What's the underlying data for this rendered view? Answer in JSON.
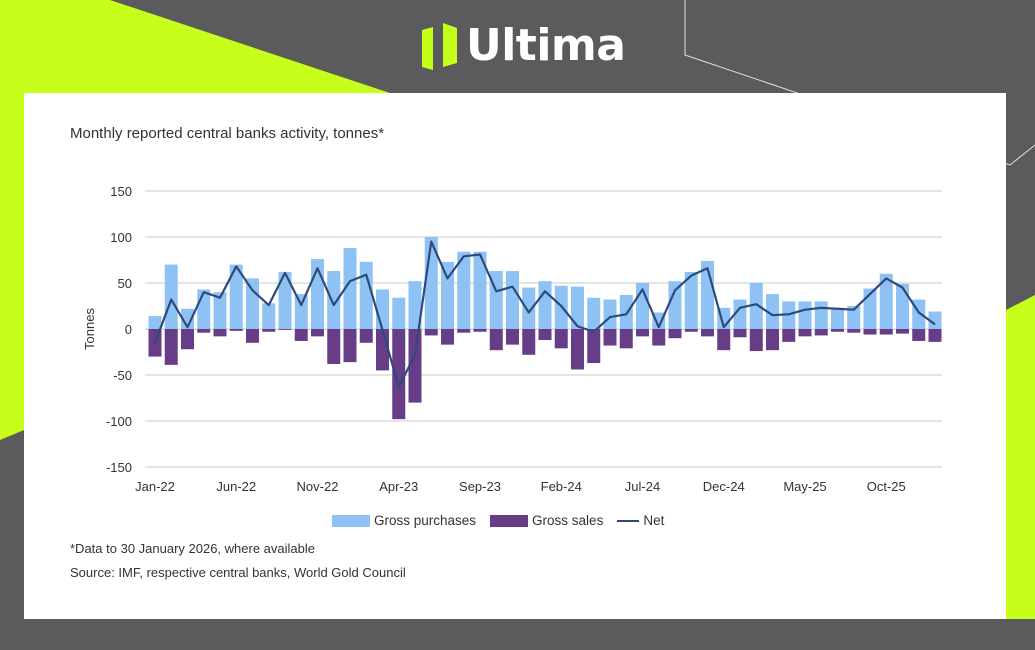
{
  "brand": {
    "name": "Ultima",
    "accent": "#c6ff1a"
  },
  "chart_data": {
    "type": "bar",
    "title": "Monthly reported central banks activity, tonnes*",
    "ylabel": "Tonnes",
    "xlabel": "",
    "ylim": [
      -150,
      150
    ],
    "yticks": [
      150,
      100,
      50,
      0,
      -50,
      -100,
      -150
    ],
    "xtick_labels": [
      "Jan-22",
      "Jun-22",
      "Nov-22",
      "Apr-23",
      "Sep-23",
      "Feb-24",
      "Jul-24",
      "Dec-24",
      "May-25",
      "Oct-25"
    ],
    "grid": true,
    "legend": "bottom",
    "categories": [
      "Jan-22",
      "Feb-22",
      "Mar-22",
      "Apr-22",
      "May-22",
      "Jun-22",
      "Jul-22",
      "Aug-22",
      "Sep-22",
      "Oct-22",
      "Nov-22",
      "Dec-22",
      "Jan-23",
      "Feb-23",
      "Mar-23",
      "Apr-23",
      "May-23",
      "Jun-23",
      "Jul-23",
      "Aug-23",
      "Sep-23",
      "Oct-23",
      "Nov-23",
      "Dec-23",
      "Jan-24",
      "Feb-24",
      "Mar-24",
      "Apr-24",
      "May-24",
      "Jun-24",
      "Jul-24",
      "Aug-24",
      "Sep-24",
      "Oct-24",
      "Nov-24",
      "Dec-24",
      "Jan-25",
      "Feb-25",
      "Mar-25",
      "Apr-25",
      "May-25",
      "Jun-25",
      "Jul-25",
      "Aug-25",
      "Sep-25",
      "Oct-25",
      "Nov-25",
      "Dec-25",
      "Jan-26"
    ],
    "series": [
      {
        "name": "Gross purchases",
        "type": "bar",
        "color": "#8ec2f4",
        "values": [
          14,
          70,
          22,
          43,
          40,
          70,
          55,
          28,
          62,
          38,
          76,
          63,
          88,
          73,
          43,
          34,
          52,
          100,
          73,
          84,
          84,
          63,
          63,
          45,
          52,
          47,
          46,
          34,
          32,
          37,
          50,
          18,
          52,
          62,
          74,
          23,
          32,
          50,
          38,
          30,
          30,
          30,
          23,
          25,
          44,
          60,
          49,
          32,
          19
        ]
      },
      {
        "name": "Gross sales",
        "type": "bar",
        "color": "#673d87",
        "values": [
          -30,
          -39,
          -22,
          -4,
          -8,
          -2,
          -15,
          -3,
          -1,
          -13,
          -8,
          -38,
          -36,
          -15,
          -45,
          -98,
          -80,
          -7,
          -17,
          -4,
          -3,
          -23,
          -17,
          -28,
          -12,
          -21,
          -44,
          -37,
          -18,
          -21,
          -8,
          -18,
          -10,
          -3,
          -8,
          -23,
          -9,
          -24,
          -23,
          -14,
          -8,
          -7,
          -3,
          -4,
          -6,
          -6,
          -5,
          -13,
          -14
        ]
      },
      {
        "name": "Net",
        "type": "line",
        "color": "#2f4a7a",
        "values": [
          -15,
          32,
          2,
          40,
          34,
          68,
          42,
          26,
          61,
          26,
          66,
          26,
          52,
          59,
          -1,
          -63,
          -28,
          95,
          55,
          79,
          81,
          41,
          46,
          18,
          41,
          25,
          3,
          -3,
          13,
          16,
          43,
          2,
          42,
          58,
          66,
          2,
          23,
          27,
          15,
          16,
          21,
          23,
          22,
          21,
          38,
          55,
          45,
          18,
          5
        ]
      }
    ]
  },
  "notes": {
    "footnote": "*Data to 30 January 2026, where available",
    "source": "Source: IMF, respective central banks, World Gold Council"
  }
}
